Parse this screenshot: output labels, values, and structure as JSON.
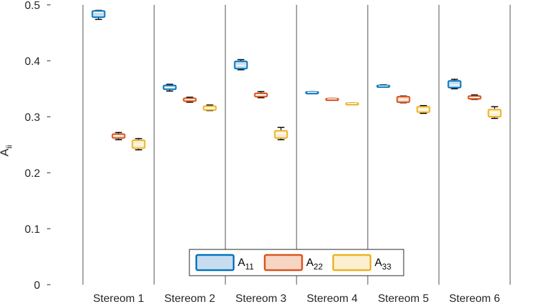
{
  "chart_data": {
    "type": "box",
    "ylabel": {
      "main": "A",
      "sub": "ii"
    },
    "ylim": [
      0,
      0.5
    ],
    "yticks": [
      "0",
      "0.1",
      "0.2",
      "0.3",
      "0.4",
      "0.5"
    ],
    "categories": [
      "Stereom 1",
      "Stereom 2",
      "Stereom 3",
      "Stereom 4",
      "Stereom 5",
      "Stereom 6"
    ],
    "grid": "vertical separators",
    "legend_position": "bottom-center",
    "series": [
      {
        "name": "A",
        "sub": "11",
        "color": "#0072BD",
        "fill": "#C7DDEF",
        "boxes": [
          {
            "min": 0.474,
            "q1": 0.478,
            "median": 0.487,
            "q3": 0.489,
            "max": 0.49
          },
          {
            "min": 0.346,
            "q1": 0.349,
            "median": 0.352,
            "q3": 0.356,
            "max": 0.358
          },
          {
            "min": 0.384,
            "q1": 0.386,
            "median": 0.392,
            "q3": 0.399,
            "max": 0.402
          },
          {
            "min": 0.343,
            "q1": 0.3435,
            "median": 0.344,
            "q3": 0.3445,
            "max": 0.345
          },
          {
            "min": 0.353,
            "q1": 0.3535,
            "median": 0.355,
            "q3": 0.356,
            "max": 0.357
          },
          {
            "min": 0.35,
            "q1": 0.352,
            "median": 0.357,
            "q3": 0.364,
            "max": 0.367
          }
        ]
      },
      {
        "name": "A",
        "sub": "22",
        "color": "#D95319",
        "fill": "#F7D5C5",
        "boxes": [
          {
            "min": 0.259,
            "q1": 0.262,
            "median": 0.266,
            "q3": 0.269,
            "max": 0.272
          },
          {
            "min": 0.326,
            "q1": 0.328,
            "median": 0.331,
            "q3": 0.333,
            "max": 0.335
          },
          {
            "min": 0.334,
            "q1": 0.336,
            "median": 0.339,
            "q3": 0.342,
            "max": 0.345
          },
          {
            "min": 0.331,
            "q1": 0.3315,
            "median": 0.332,
            "q3": 0.3325,
            "max": 0.333
          },
          {
            "min": 0.325,
            "q1": 0.326,
            "median": 0.331,
            "q3": 0.336,
            "max": 0.337
          },
          {
            "min": 0.331,
            "q1": 0.332,
            "median": 0.335,
            "q3": 0.337,
            "max": 0.339
          }
        ]
      },
      {
        "name": "A",
        "sub": "33",
        "color": "#EDB120",
        "fill": "#FBEFD1",
        "boxes": [
          {
            "min": 0.241,
            "q1": 0.244,
            "median": 0.251,
            "q3": 0.258,
            "max": 0.261
          },
          {
            "min": 0.311,
            "q1": 0.312,
            "median": 0.316,
            "q3": 0.319,
            "max": 0.321
          },
          {
            "min": 0.259,
            "q1": 0.262,
            "median": 0.27,
            "q3": 0.275,
            "max": 0.281
          },
          {
            "min": 0.323,
            "q1": 0.3235,
            "median": 0.324,
            "q3": 0.3245,
            "max": 0.325
          },
          {
            "min": 0.306,
            "q1": 0.308,
            "median": 0.313,
            "q3": 0.318,
            "max": 0.32
          },
          {
            "min": 0.297,
            "q1": 0.3,
            "median": 0.307,
            "q3": 0.313,
            "max": 0.318
          }
        ]
      }
    ]
  }
}
